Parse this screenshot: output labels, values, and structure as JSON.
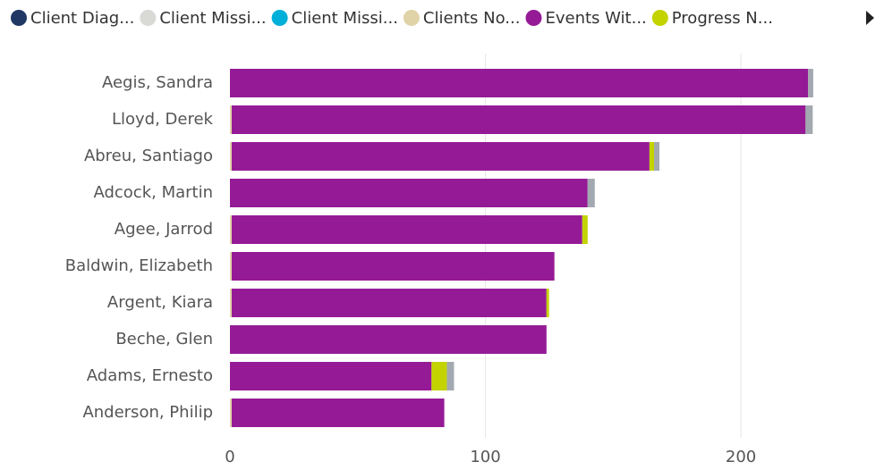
{
  "chart_data": {
    "type": "bar",
    "orientation": "horizontal",
    "stacked": true,
    "categories": [
      "Aegis, Sandra",
      "Lloyd, Derek",
      "Abreu, Santiago",
      "Adcock, Martin",
      "Agee, Jarrod",
      "Baldwin, Elizabeth",
      "Argent, Kiara",
      "Beche, Glen",
      "Adams, Ernesto",
      "Anderson, Philip"
    ],
    "series": [
      {
        "name": "Client Diag...",
        "color": "#1f3864",
        "values": [
          0,
          0,
          0,
          0,
          0,
          0,
          0,
          0,
          0,
          0
        ]
      },
      {
        "name": "Client Missi...",
        "color": "#d9d9d6",
        "values": [
          0,
          0,
          0,
          0,
          0,
          0,
          0,
          0,
          0,
          0
        ]
      },
      {
        "name": "Client Missi...",
        "color": "#00b0d8",
        "values": [
          0,
          0,
          0,
          0,
          0,
          0,
          0,
          0,
          0,
          0
        ]
      },
      {
        "name": "Clients No...",
        "color": "#e0d3a8",
        "values": [
          0,
          0.7,
          0.7,
          0,
          0.7,
          0.7,
          0.7,
          0,
          0,
          0.7
        ]
      },
      {
        "name": "Events Wit...",
        "color": "#951b96",
        "values": [
          226.3,
          224.6,
          163.5,
          140,
          137.2,
          126.3,
          123.2,
          123.9,
          78.9,
          83.2
        ]
      },
      {
        "name": "Progress N...",
        "color": "#c3d300",
        "values": [
          0,
          0,
          1.8,
          0,
          2.1,
          0,
          1,
          0,
          6,
          0
        ]
      },
      {
        "color": "#a3a9b0",
        "values": [
          2,
          2.8,
          2.1,
          2.8,
          0,
          0,
          0,
          0,
          2.8,
          0
        ]
      }
    ],
    "xlim": [
      0,
      256
    ],
    "xticks": [
      0,
      100,
      200
    ],
    "grid": true,
    "legend": "top"
  }
}
